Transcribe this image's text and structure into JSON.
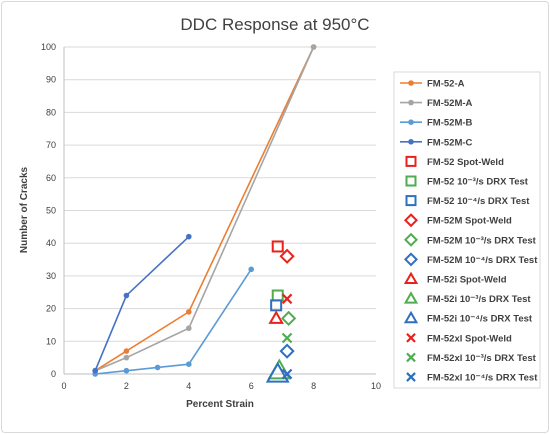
{
  "chart_data": {
    "type": "scatter",
    "title": "DDC Response at 950°C",
    "xlabel": "Percent Strain",
    "ylabel": "Number of Cracks",
    "xlim": [
      0,
      10
    ],
    "ylim": [
      0,
      100
    ],
    "xticks": [
      "0",
      "2",
      "4",
      "6",
      "8",
      "10"
    ],
    "yticks": [
      "0",
      "10",
      "20",
      "30",
      "40",
      "50",
      "60",
      "70",
      "80",
      "90",
      "100"
    ],
    "grid": "horizontal",
    "legend_position": "right",
    "series": [
      {
        "name": "FM-52-A",
        "kind": "line",
        "color": "#ed7d31",
        "points": [
          [
            1,
            1
          ],
          [
            2,
            7
          ],
          [
            4,
            19
          ],
          [
            8,
            100
          ]
        ]
      },
      {
        "name": "FM-52M-A",
        "kind": "line",
        "color": "#a5a5a5",
        "points": [
          [
            1,
            1
          ],
          [
            2,
            5
          ],
          [
            4,
            14
          ],
          [
            8,
            100
          ]
        ]
      },
      {
        "name": "FM-52M-B",
        "kind": "line",
        "color": "#5b9bd5",
        "points": [
          [
            1,
            0
          ],
          [
            2,
            1
          ],
          [
            3,
            2
          ],
          [
            4,
            3
          ],
          [
            6,
            32
          ]
        ]
      },
      {
        "name": "FM-52M-C",
        "kind": "line",
        "color": "#4472c4",
        "points": [
          [
            1,
            1
          ],
          [
            2,
            24
          ],
          [
            4,
            42
          ]
        ]
      },
      {
        "name": "FM-52 Spot-Weld",
        "kind": "marker",
        "marker": "square",
        "color": "#e8211c",
        "points": [
          [
            6.85,
            39
          ]
        ]
      },
      {
        "name": "FM-52 10⁻³/s DRX Test",
        "kind": "marker",
        "marker": "square",
        "color": "#4ead4e",
        "points": [
          [
            6.85,
            24
          ]
        ]
      },
      {
        "name": "FM-52 10⁻⁴/s DRX Test",
        "kind": "marker",
        "marker": "square",
        "color": "#2e6fc0",
        "points": [
          [
            6.8,
            21
          ]
        ]
      },
      {
        "name": "FM-52M Spot-Weld",
        "kind": "marker",
        "marker": "diamond",
        "color": "#e8211c",
        "points": [
          [
            7.15,
            36
          ]
        ]
      },
      {
        "name": "FM-52M 10⁻³/s DRX Test",
        "kind": "marker",
        "marker": "diamond",
        "color": "#4ead4e",
        "points": [
          [
            7.2,
            17
          ]
        ]
      },
      {
        "name": "FM-52M 10⁻⁴/s DRX Test",
        "kind": "marker",
        "marker": "diamond",
        "color": "#2e6fc0",
        "points": [
          [
            7.15,
            7
          ]
        ]
      },
      {
        "name": "FM-52i Spot-Weld",
        "kind": "marker",
        "marker": "triangle",
        "color": "#e8211c",
        "points": [
          [
            6.8,
            17
          ]
        ]
      },
      {
        "name": "FM-52i 10⁻³/s DRX Test",
        "kind": "marker",
        "marker": "triangle",
        "color": "#4ead4e",
        "points": [
          [
            6.9,
            1
          ]
        ]
      },
      {
        "name": "FM-52i 10⁻⁴/s DRX Test",
        "kind": "marker",
        "marker": "triangle",
        "color": "#2e6fc0",
        "points": [
          [
            6.85,
            0
          ]
        ]
      },
      {
        "name": "FM-52xl Spot-Weld",
        "kind": "marker",
        "marker": "x",
        "color": "#e8211c",
        "points": [
          [
            7.15,
            23
          ]
        ]
      },
      {
        "name": "FM-52xl 10⁻³/s DRX Test",
        "kind": "marker",
        "marker": "x",
        "color": "#4ead4e",
        "points": [
          [
            7.15,
            11
          ]
        ]
      },
      {
        "name": "FM-52xl 10⁻⁴/s DRX Test",
        "kind": "marker",
        "marker": "x",
        "color": "#2e6fc0",
        "points": [
          [
            7.15,
            0
          ]
        ]
      }
    ]
  }
}
